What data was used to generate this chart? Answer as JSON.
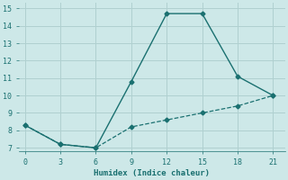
{
  "xlabel": "Humidex (Indice chaleur)",
  "bg_color": "#cde8e8",
  "grid_color": "#b0d0d0",
  "line_color": "#1a7070",
  "x_solid": [
    0,
    3,
    6,
    9,
    12,
    15,
    18,
    21
  ],
  "y_solid": [
    8.3,
    7.2,
    7.0,
    10.8,
    14.7,
    14.7,
    11.1,
    10.0
  ],
  "x_dashed": [
    0,
    3,
    6,
    9,
    12,
    15,
    18,
    21
  ],
  "y_dashed": [
    8.3,
    7.2,
    7.0,
    8.2,
    8.6,
    9.0,
    9.4,
    10.0
  ],
  "xlim": [
    -0.5,
    22
  ],
  "ylim": [
    6.8,
    15.3
  ],
  "xticks": [
    0,
    3,
    6,
    9,
    12,
    15,
    18,
    21
  ],
  "yticks": [
    7,
    8,
    9,
    10,
    11,
    12,
    13,
    14,
    15
  ]
}
